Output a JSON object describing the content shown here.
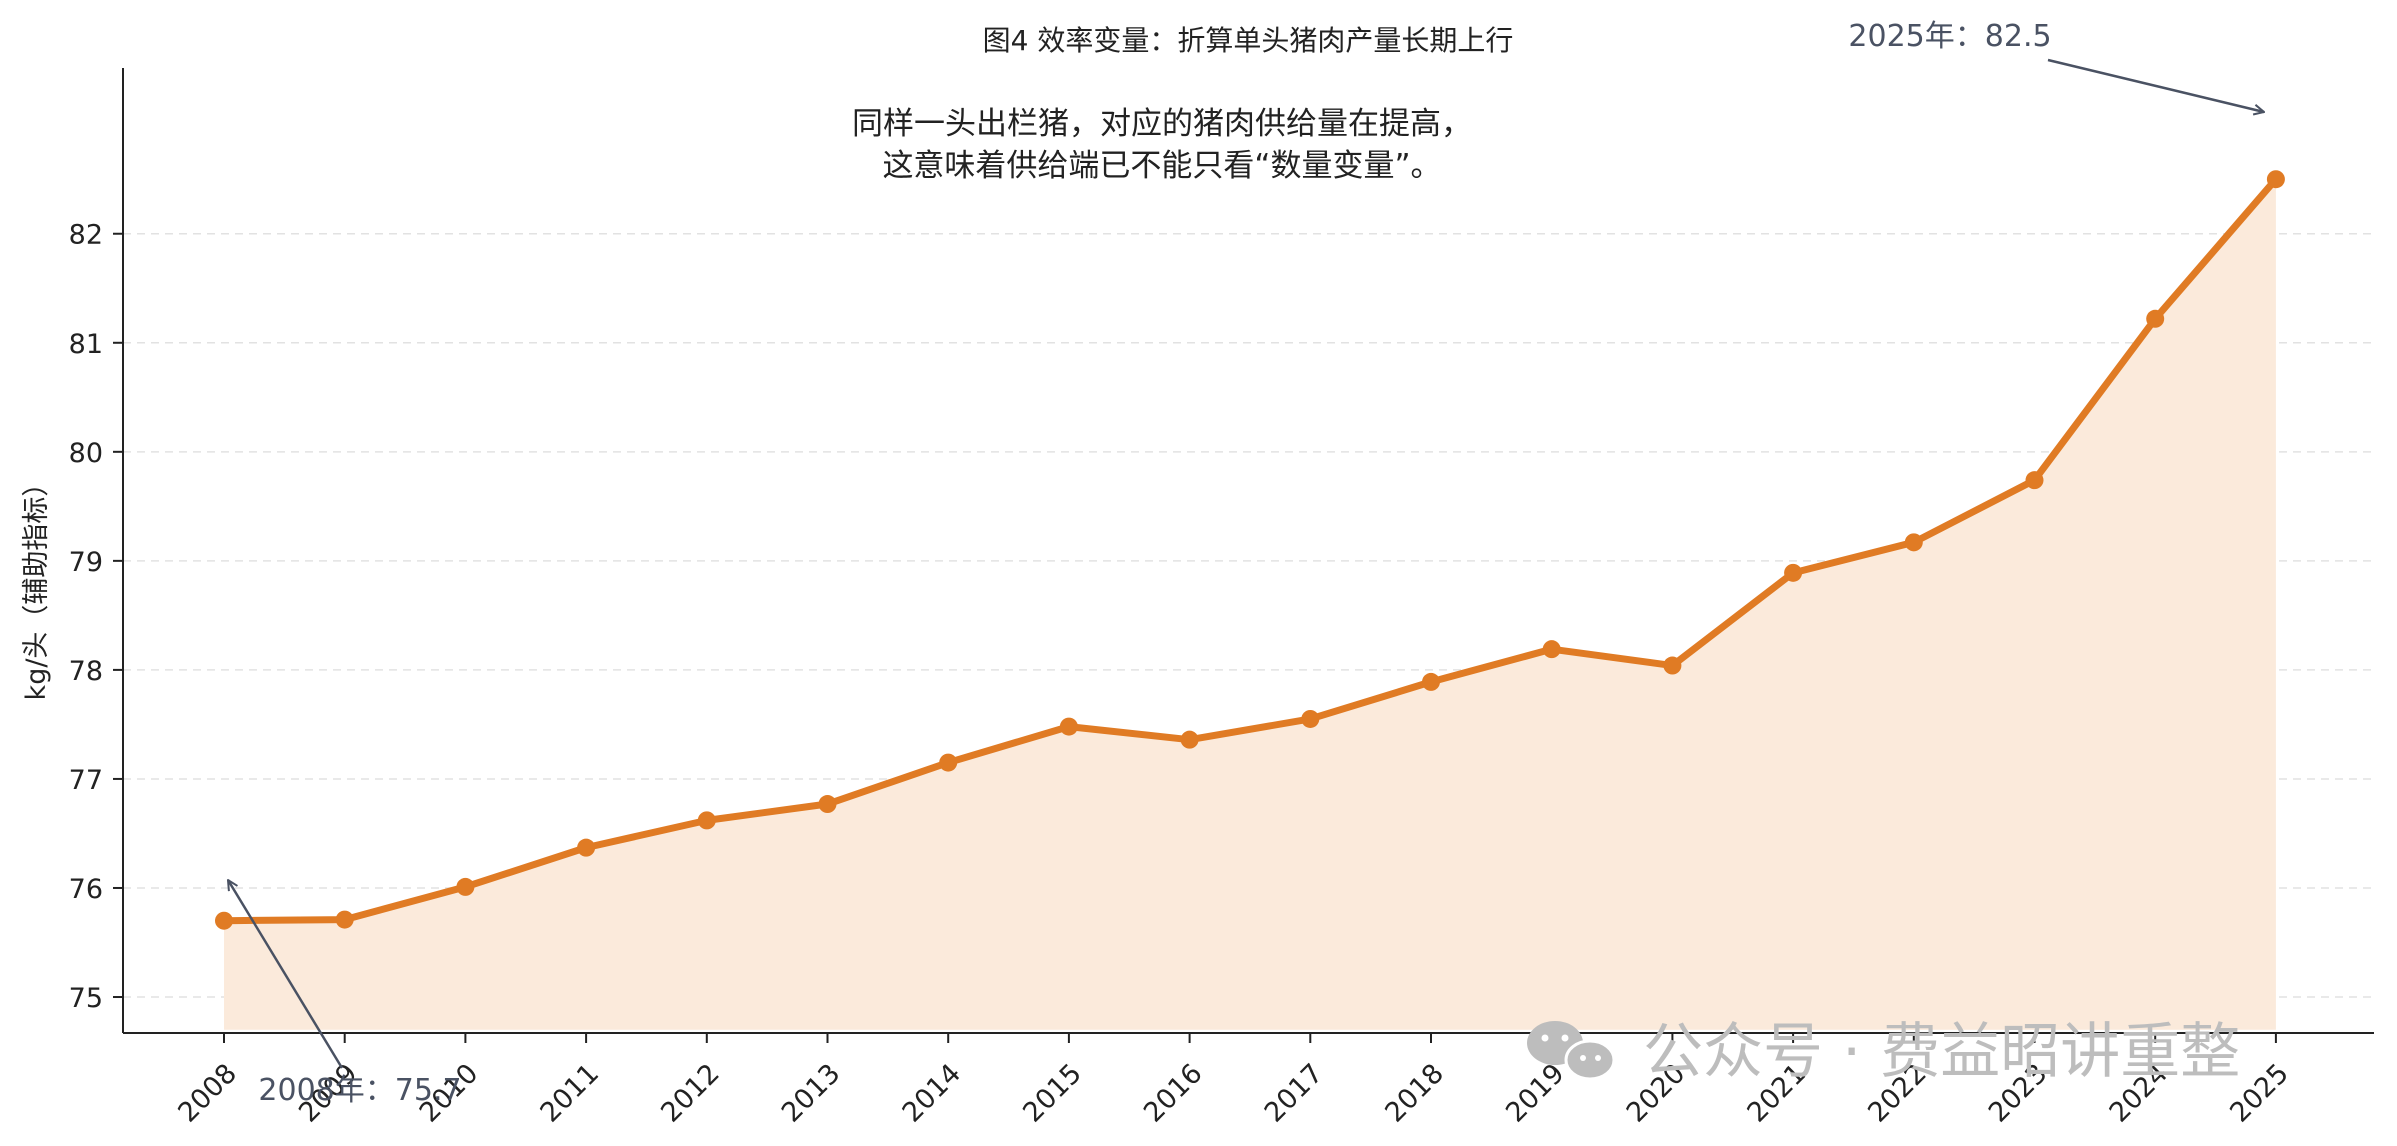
{
  "chart_data": {
    "type": "area",
    "title": "图4 效率变量：折算单头猪肉产量长期上行",
    "xlabel": "",
    "ylabel": "kg/头（辅助指标）",
    "categories": [
      "2008",
      "2009",
      "2010",
      "2011",
      "2012",
      "2013",
      "2014",
      "2015",
      "2016",
      "2017",
      "2018",
      "2019",
      "2020",
      "2021",
      "2022",
      "2023",
      "2024",
      "2025"
    ],
    "series": [
      {
        "values": [
          75.7,
          75.71,
          76.01,
          76.37,
          76.62,
          76.77,
          77.15,
          77.48,
          77.36,
          77.55,
          77.89,
          78.19,
          78.04,
          78.89,
          79.17,
          79.74,
          81.22,
          82.5
        ]
      }
    ],
    "ylim": [
      74.67,
      83.52
    ],
    "yticks": [
      75,
      76,
      77,
      78,
      79,
      80,
      81,
      82
    ],
    "area_baseline": 74.7,
    "grid": "horizontal dashed",
    "annotations": [
      {
        "text": [
          "同样一头出栏猪，对应的猪肉供给量在提高，",
          "这意味着供给端已不能只看“数量变量”。"
        ]
      },
      {
        "text": "2025年：82.5",
        "x": "2025",
        "y": 82.5
      },
      {
        "text": "2008年：75.7",
        "x": "2008",
        "y": 75.7
      }
    ],
    "colors": {
      "line": "#e07b24",
      "fill": "#fbeadb",
      "grid": "#e2e2e2",
      "axis": "#222222",
      "callout": "#4a5263"
    }
  },
  "watermark": {
    "text": "公众号 · 费益昭讲重整",
    "icon": "wechat-icon"
  }
}
